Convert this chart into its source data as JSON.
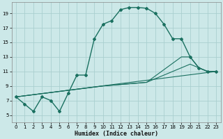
{
  "title": "",
  "xlabel": "Humidex (Indice chaleur)",
  "bg_color": "#cce8e8",
  "grid_color": "#aacfcf",
  "line_color": "#1a7060",
  "xlim": [
    -0.5,
    23.5
  ],
  "ylim": [
    4.0,
    20.5
  ],
  "yticks": [
    5,
    7,
    9,
    11,
    13,
    15,
    17,
    19
  ],
  "xticks": [
    0,
    1,
    2,
    3,
    4,
    5,
    6,
    7,
    8,
    9,
    10,
    11,
    12,
    13,
    14,
    15,
    16,
    17,
    18,
    19,
    20,
    21,
    22,
    23
  ],
  "main_series": {
    "x": [
      0,
      1,
      2,
      3,
      4,
      5,
      6,
      7,
      8,
      9,
      10,
      11,
      12,
      13,
      14,
      15,
      16,
      17,
      18,
      19,
      20,
      21,
      22,
      23
    ],
    "y": [
      7.5,
      6.5,
      5.5,
      7.5,
      7.0,
      5.5,
      8.0,
      10.5,
      10.5,
      15.5,
      17.5,
      18.0,
      19.5,
      19.8,
      19.8,
      19.7,
      19.0,
      17.5,
      15.5,
      15.5,
      13.0,
      11.5,
      11.0,
      11.0
    ]
  },
  "trend_lines": [
    {
      "x": [
        0,
        23
      ],
      "y": [
        7.5,
        11.0
      ]
    },
    {
      "x": [
        0,
        10,
        15,
        20,
        21,
        22,
        23
      ],
      "y": [
        7.5,
        9.0,
        9.5,
        12.0,
        11.5,
        11.0,
        11.0
      ]
    },
    {
      "x": [
        0,
        10,
        15,
        19,
        20,
        21,
        22,
        23
      ],
      "y": [
        7.5,
        9.0,
        9.5,
        13.0,
        13.0,
        11.5,
        11.0,
        11.0
      ]
    }
  ]
}
